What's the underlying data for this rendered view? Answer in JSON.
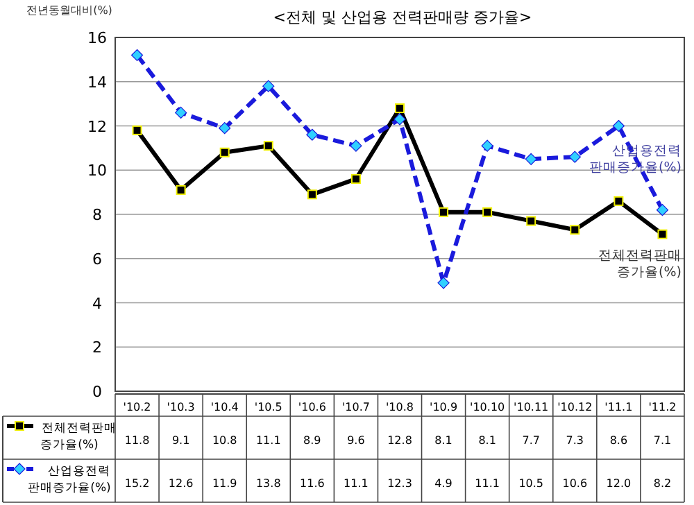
{
  "chart_data": {
    "type": "line",
    "title": "<전체 및 산업용 전력판매량 증가율>",
    "ylabel": "전년동월대비(%)",
    "categories": [
      "'10.2",
      "'10.3",
      "'10.4",
      "'10.5",
      "'10.6",
      "'10.7",
      "'10.8",
      "'10.9",
      "'10.10",
      "'10.11",
      "'10.12",
      "'11.1",
      "'11.2"
    ],
    "series": [
      {
        "name": "전체전력판매 증가율(%)",
        "color": "#000000",
        "marker": "square",
        "line_style": "solid",
        "values": [
          11.8,
          9.1,
          10.8,
          11.1,
          8.9,
          9.6,
          12.8,
          8.1,
          8.1,
          7.7,
          7.3,
          8.6,
          7.1
        ]
      },
      {
        "name": "산업용전력 판매증가율(%)",
        "color": "#1a1adc",
        "marker": "diamond",
        "line_style": "dashed",
        "values": [
          15.2,
          12.6,
          11.9,
          13.8,
          11.6,
          11.1,
          12.3,
          4.9,
          11.1,
          10.5,
          10.6,
          12.0,
          8.2
        ],
        "value_labels": [
          "15.2",
          "12.6",
          "11.9",
          "13.8",
          "11.6",
          "11.1",
          "12.3",
          "4.9",
          "11.1",
          "10.5",
          "10.6",
          "12.0",
          "8.2"
        ]
      }
    ],
    "annotations": [
      {
        "text": "산업용전력 판매증가율(%)",
        "x": "'11.2",
        "y": 8.2
      },
      {
        "text": "전체전력판매 증가율(%)",
        "x": "'11.2",
        "y": 7.1
      }
    ],
    "ylim": [
      0,
      16
    ],
    "yticks": [
      0,
      2,
      4,
      6,
      8,
      10,
      12,
      14,
      16
    ],
    "grid": "y",
    "data_labels": true,
    "legend": "bottom"
  }
}
